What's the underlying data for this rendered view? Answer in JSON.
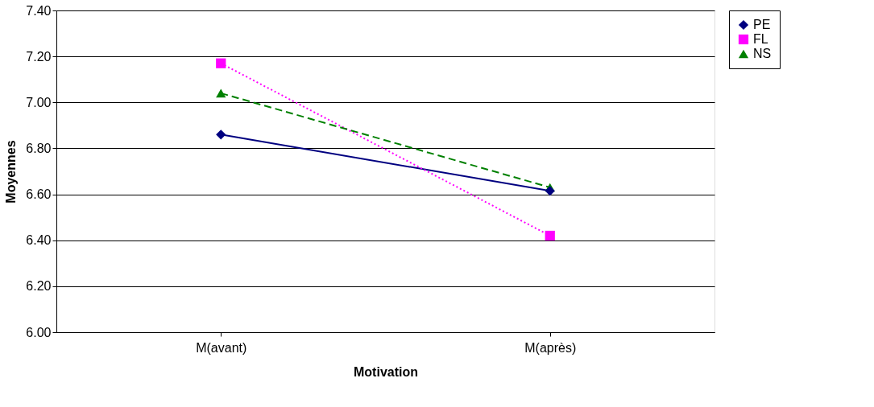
{
  "chart_data": {
    "type": "line",
    "xlabel": "Motivation",
    "ylabel": "Moyennes",
    "categories": [
      "M(avant)",
      "M(après)"
    ],
    "series": [
      {
        "name": "PE",
        "color": "#000080",
        "values": [
          6.86,
          6.615
        ],
        "marker": "diamond",
        "line_style": "solid"
      },
      {
        "name": "FL",
        "color": "#ff00ff",
        "values": [
          7.17,
          6.42
        ],
        "marker": "square",
        "line_style": "dotted"
      },
      {
        "name": "NS",
        "color": "#008000",
        "values": [
          7.04,
          6.63
        ],
        "marker": "triangle",
        "line_style": "dashed"
      }
    ],
    "ylim": [
      6.0,
      7.4
    ],
    "yticks": [
      {
        "value": 6.0,
        "label": "6.00"
      },
      {
        "value": 6.2,
        "label": "6.20"
      },
      {
        "value": 6.4,
        "label": "6.40"
      },
      {
        "value": 6.6,
        "label": "6.60"
      },
      {
        "value": 6.8,
        "label": "6.80"
      },
      {
        "value": 7.0,
        "label": "7.00"
      },
      {
        "value": 7.2,
        "label": "7.20"
      },
      {
        "value": 7.4,
        "label": "7.40"
      }
    ],
    "grid": "y",
    "legend": "right"
  }
}
